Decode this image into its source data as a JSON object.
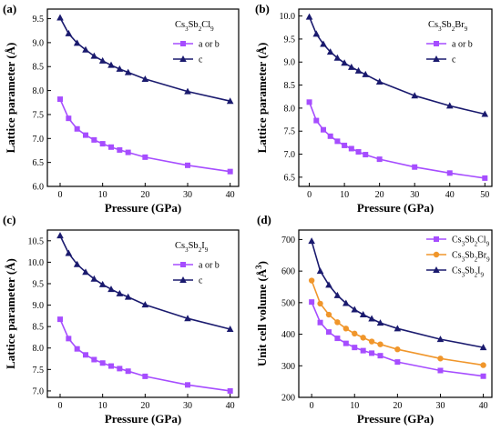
{
  "chart_data": [
    {
      "type": "line",
      "panel_label": "(a)",
      "title": "Cs3Sb2Cl9",
      "xlabel": "Pressure (GPa)",
      "ylabel": "Lattice parameter (Å)",
      "xlim": [
        -3,
        42
      ],
      "ylim": [
        6.0,
        9.7
      ],
      "xticks": [
        "0",
        "10",
        "20",
        "30",
        "40"
      ],
      "yticks": [
        "6.0",
        "6.5",
        "7.0",
        "7.5",
        "8.0",
        "8.5",
        "9.0",
        "9.5"
      ],
      "legend_position": "top-right",
      "x": [
        0,
        2,
        4,
        6,
        8,
        10,
        12,
        14,
        16,
        20,
        30,
        40
      ],
      "series": [
        {
          "name": "a or b",
          "color": "#a64dff",
          "marker": "square",
          "values": [
            7.82,
            7.42,
            7.2,
            7.07,
            6.97,
            6.89,
            6.82,
            6.76,
            6.71,
            6.61,
            6.44,
            6.31
          ]
        },
        {
          "name": "c",
          "color": "#1a1a6e",
          "marker": "triangle",
          "values": [
            9.52,
            9.19,
            8.99,
            8.85,
            8.72,
            8.62,
            8.53,
            8.45,
            8.38,
            8.24,
            7.98,
            7.78
          ]
        }
      ]
    },
    {
      "type": "line",
      "panel_label": "(b)",
      "title": "Cs3Sb2Br9",
      "xlabel": "Pressure (GPa)",
      "ylabel": "Lattice parameter (Å)",
      "xlim": [
        -3,
        52
      ],
      "ylim": [
        6.3,
        10.15
      ],
      "xticks": [
        "0",
        "10",
        "20",
        "30",
        "40",
        "50"
      ],
      "yticks": [
        "6.5",
        "7.0",
        "7.5",
        "8.0",
        "8.5",
        "9.0",
        "9.5",
        "10.0"
      ],
      "legend_position": "top-right",
      "x": [
        0,
        2,
        4,
        6,
        8,
        10,
        12,
        14,
        16,
        20,
        30,
        40,
        50
      ],
      "series": [
        {
          "name": "a or b",
          "color": "#a64dff",
          "marker": "square",
          "values": [
            8.13,
            7.73,
            7.53,
            7.39,
            7.28,
            7.19,
            7.12,
            7.05,
            6.99,
            6.89,
            6.72,
            6.59,
            6.48
          ]
        },
        {
          "name": "c",
          "color": "#1a1a6e",
          "marker": "triangle",
          "values": [
            9.98,
            9.61,
            9.39,
            9.22,
            9.09,
            8.98,
            8.89,
            8.81,
            8.73,
            8.57,
            8.27,
            8.05,
            7.87
          ]
        }
      ]
    },
    {
      "type": "line",
      "panel_label": "(c)",
      "title": "Cs3Sb2I9",
      "xlabel": "Pressure (GPa)",
      "ylabel": "Lattice parameter (Å)",
      "xlim": [
        -3,
        42
      ],
      "ylim": [
        6.85,
        10.75
      ],
      "xticks": [
        "0",
        "10",
        "20",
        "30",
        "40"
      ],
      "yticks": [
        "7.0",
        "7.5",
        "8.0",
        "8.5",
        "9.0",
        "9.5",
        "10.0",
        "10.5"
      ],
      "legend_position": "top-right",
      "x": [
        0,
        2,
        4,
        6,
        8,
        10,
        12,
        14,
        16,
        20,
        30,
        40
      ],
      "series": [
        {
          "name": "a or b",
          "color": "#a64dff",
          "marker": "square",
          "values": [
            8.67,
            8.22,
            7.98,
            7.84,
            7.73,
            7.65,
            7.58,
            7.52,
            7.46,
            7.34,
            7.14,
            7.0
          ]
        },
        {
          "name": "c",
          "color": "#1a1a6e",
          "marker": "triangle",
          "values": [
            10.62,
            10.21,
            9.95,
            9.77,
            9.61,
            9.48,
            9.37,
            9.27,
            9.19,
            9.01,
            8.69,
            8.44
          ]
        }
      ]
    },
    {
      "type": "line",
      "panel_label": "(d)",
      "title": "",
      "xlabel": "Pressure (GPa)",
      "ylabel": "Unit cell volume (Å3)",
      "xlim": [
        -3,
        42
      ],
      "ylim": [
        200,
        730
      ],
      "xticks": [
        "0",
        "10",
        "20",
        "30",
        "40"
      ],
      "yticks": [
        "200",
        "300",
        "400",
        "500",
        "600",
        "700"
      ],
      "legend_position": "top-right",
      "x": [
        0,
        2,
        4,
        6,
        8,
        10,
        12,
        14,
        16,
        20,
        30,
        40
      ],
      "series": [
        {
          "name": "Cs3Sb2Cl9",
          "color": "#a64dff",
          "marker": "square",
          "values": [
            502,
            437,
            407,
            387,
            371,
            358,
            348,
            340,
            332,
            312,
            285,
            267
          ]
        },
        {
          "name": "Cs3Sb2Br9",
          "color": "#f0962b",
          "marker": "circle",
          "values": [
            570,
            497,
            462,
            438,
            418,
            402,
            389,
            377,
            368,
            352,
            323,
            302
          ]
        },
        {
          "name": "Cs3Sb2I9",
          "color": "#1a1a6e",
          "marker": "triangle",
          "values": [
            695,
            600,
            556,
            523,
            498,
            478,
            462,
            449,
            436,
            418,
            384,
            358
          ]
        }
      ]
    }
  ]
}
